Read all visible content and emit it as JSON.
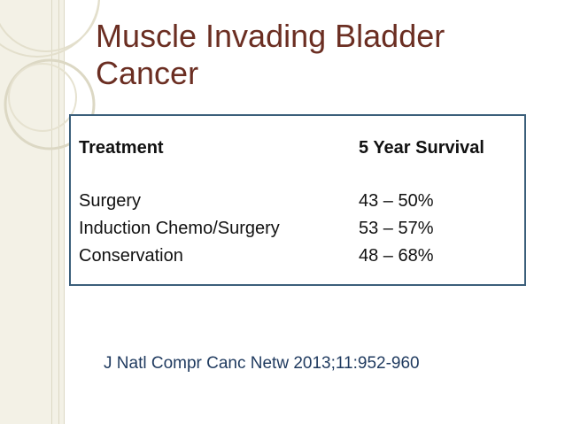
{
  "slide": {
    "title_line1": "Muscle Invading Bladder",
    "title_line2": "Cancer"
  },
  "table": {
    "header": {
      "treatment": "Treatment",
      "survival": "5 Year Survival"
    },
    "rows": [
      {
        "treatment": "Surgery",
        "survival": "43 – 50%"
      },
      {
        "treatment": "Induction Chemo/Surgery",
        "survival": "53 – 57%"
      },
      {
        "treatment": "Conservation",
        "survival": "48 – 68%"
      }
    ]
  },
  "citation": "J Natl Compr Canc Netw 2013;11:952-960",
  "colors": {
    "title": "#6b2e22",
    "border": "#3b5f7a",
    "citation": "#1f3a5f",
    "band": "#f3f1e6"
  }
}
